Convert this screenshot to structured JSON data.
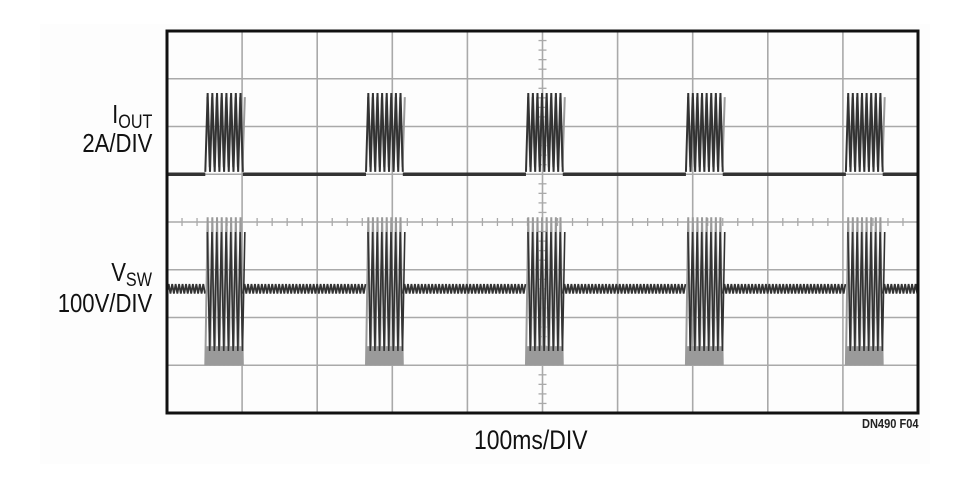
{
  "chart_data": {
    "type": "line",
    "title": "",
    "xlabel": "100ms/DIV",
    "figure_id": "DN490 F04",
    "x_unit": "ms",
    "xlim": [
      0,
      1000
    ],
    "x_per_div": 100,
    "divisions": {
      "x": 10,
      "y": 8
    },
    "grid": true,
    "colors": {
      "grid": "#a9a9a9",
      "frame": "#111111",
      "trace_dark": "#333333",
      "trace_light": "#9a9a9a"
    },
    "series": [
      {
        "name": "I_OUT",
        "label_main": "I",
        "label_sub": "OUT",
        "scale": "2A/DIV",
        "unit": "A",
        "baseline": 0,
        "burst_peak": 3.4,
        "bursts_ms": [
          [
            51,
            101
          ],
          [
            265,
            314
          ],
          [
            478,
            527
          ],
          [
            691,
            740
          ],
          [
            904,
            953
          ]
        ]
      },
      {
        "name": "V_SW",
        "label_main": "V",
        "label_sub": "SW",
        "scale": "100V/DIV",
        "unit": "V",
        "idle_level": 160,
        "idle_ripple": 10,
        "burst_low": 0,
        "burst_high": 310,
        "bursts_ms": [
          [
            51,
            101
          ],
          [
            265,
            314
          ],
          [
            478,
            527
          ],
          [
            691,
            740
          ],
          [
            904,
            953
          ]
        ]
      }
    ]
  }
}
